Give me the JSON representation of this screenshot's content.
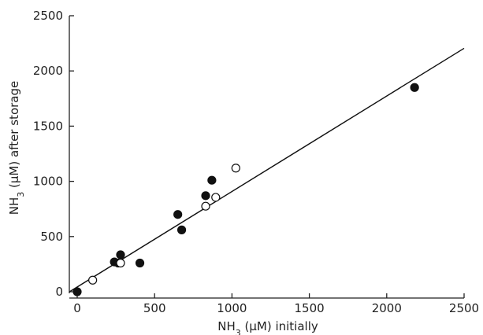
{
  "chart_data": {
    "type": "scatter",
    "xlabel": {
      "prefix": "NH",
      "subscript": "3",
      "suffix": " (μM) initially"
    },
    "ylabel": {
      "prefix": "NH",
      "subscript": "3",
      "suffix": " (μM) after storage"
    },
    "xlim": [
      0,
      2500
    ],
    "ylim": [
      0,
      2500
    ],
    "xticks": [
      "0",
      "500",
      "1000",
      "1500",
      "2000",
      "2500"
    ],
    "yticks": [
      "0",
      "500",
      "1000",
      "1500",
      "2000",
      "2500"
    ],
    "grid": false,
    "legend": "none",
    "series": [
      {
        "marker": "filled-circle",
        "color": "#111111",
        "points": [
          [
            0,
            0
          ],
          [
            240,
            270
          ],
          [
            265,
            260
          ],
          [
            280,
            335
          ],
          [
            405,
            260
          ],
          [
            650,
            700
          ],
          [
            675,
            560
          ],
          [
            830,
            870
          ],
          [
            870,
            1010
          ],
          [
            2180,
            1850
          ]
        ]
      },
      {
        "marker": "open-circle",
        "color": "#111111",
        "points": [
          [
            100,
            105
          ],
          [
            280,
            260
          ],
          [
            830,
            775
          ],
          [
            895,
            855
          ],
          [
            1025,
            1120
          ]
        ]
      }
    ],
    "fit_line": {
      "from": [
        -50,
        0
      ],
      "to": [
        2500,
        2205
      ]
    }
  }
}
